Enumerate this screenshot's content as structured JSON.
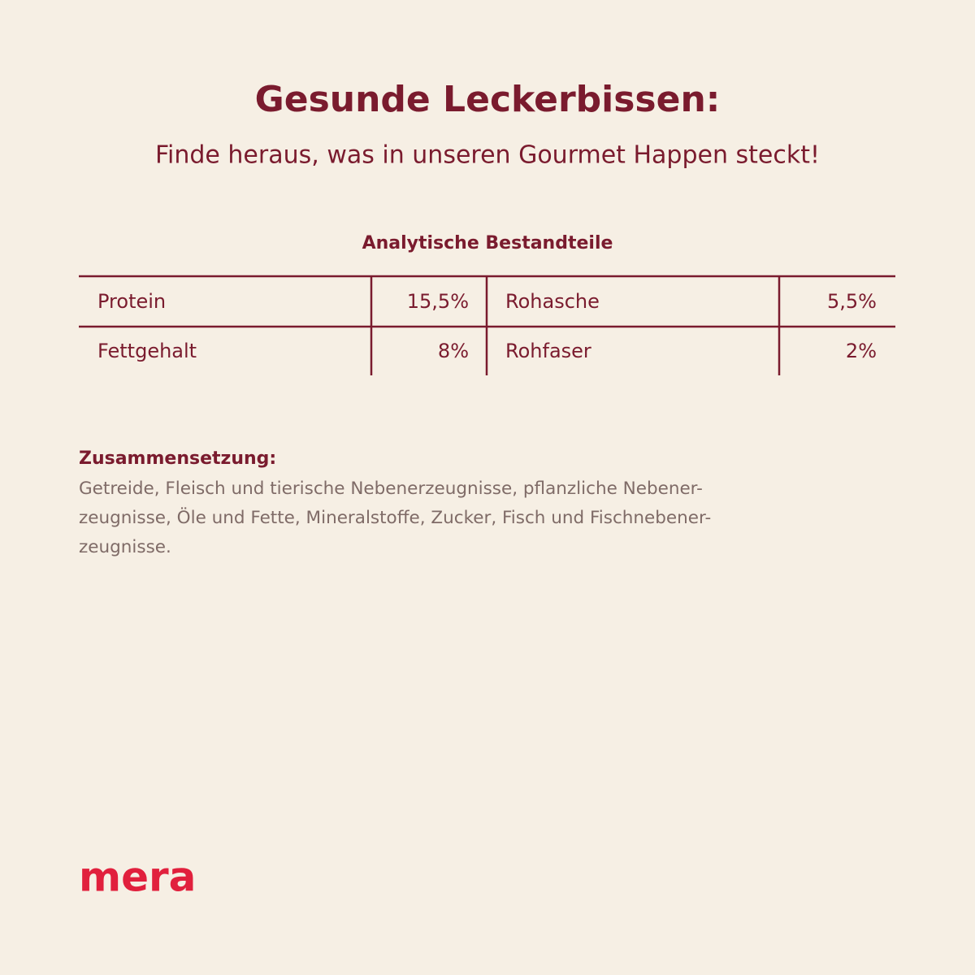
{
  "header": {
    "title": "Gesunde Leckerbissen:",
    "subtitle": "Finde heraus, was in unseren Gourmet Happen steckt!"
  },
  "table": {
    "title": "Analytische Bestandteile",
    "rows": [
      [
        "Protein",
        "15,5%",
        "Rohasche",
        "5,5%"
      ],
      [
        "Fettgehalt",
        "8%",
        "Rohfaser",
        "2%"
      ]
    ]
  },
  "composition": {
    "heading": "Zusammensetzung:",
    "lines": [
      "Getreide, Fleisch und tierische Nebenerzeugnisse, pflanzliche Nebener-",
      "zeugnisse, Öle und Fette, Mineralstoffe, Zucker, Fisch und Fischnebener-",
      "zeugnisse."
    ]
  },
  "logo": "mera"
}
